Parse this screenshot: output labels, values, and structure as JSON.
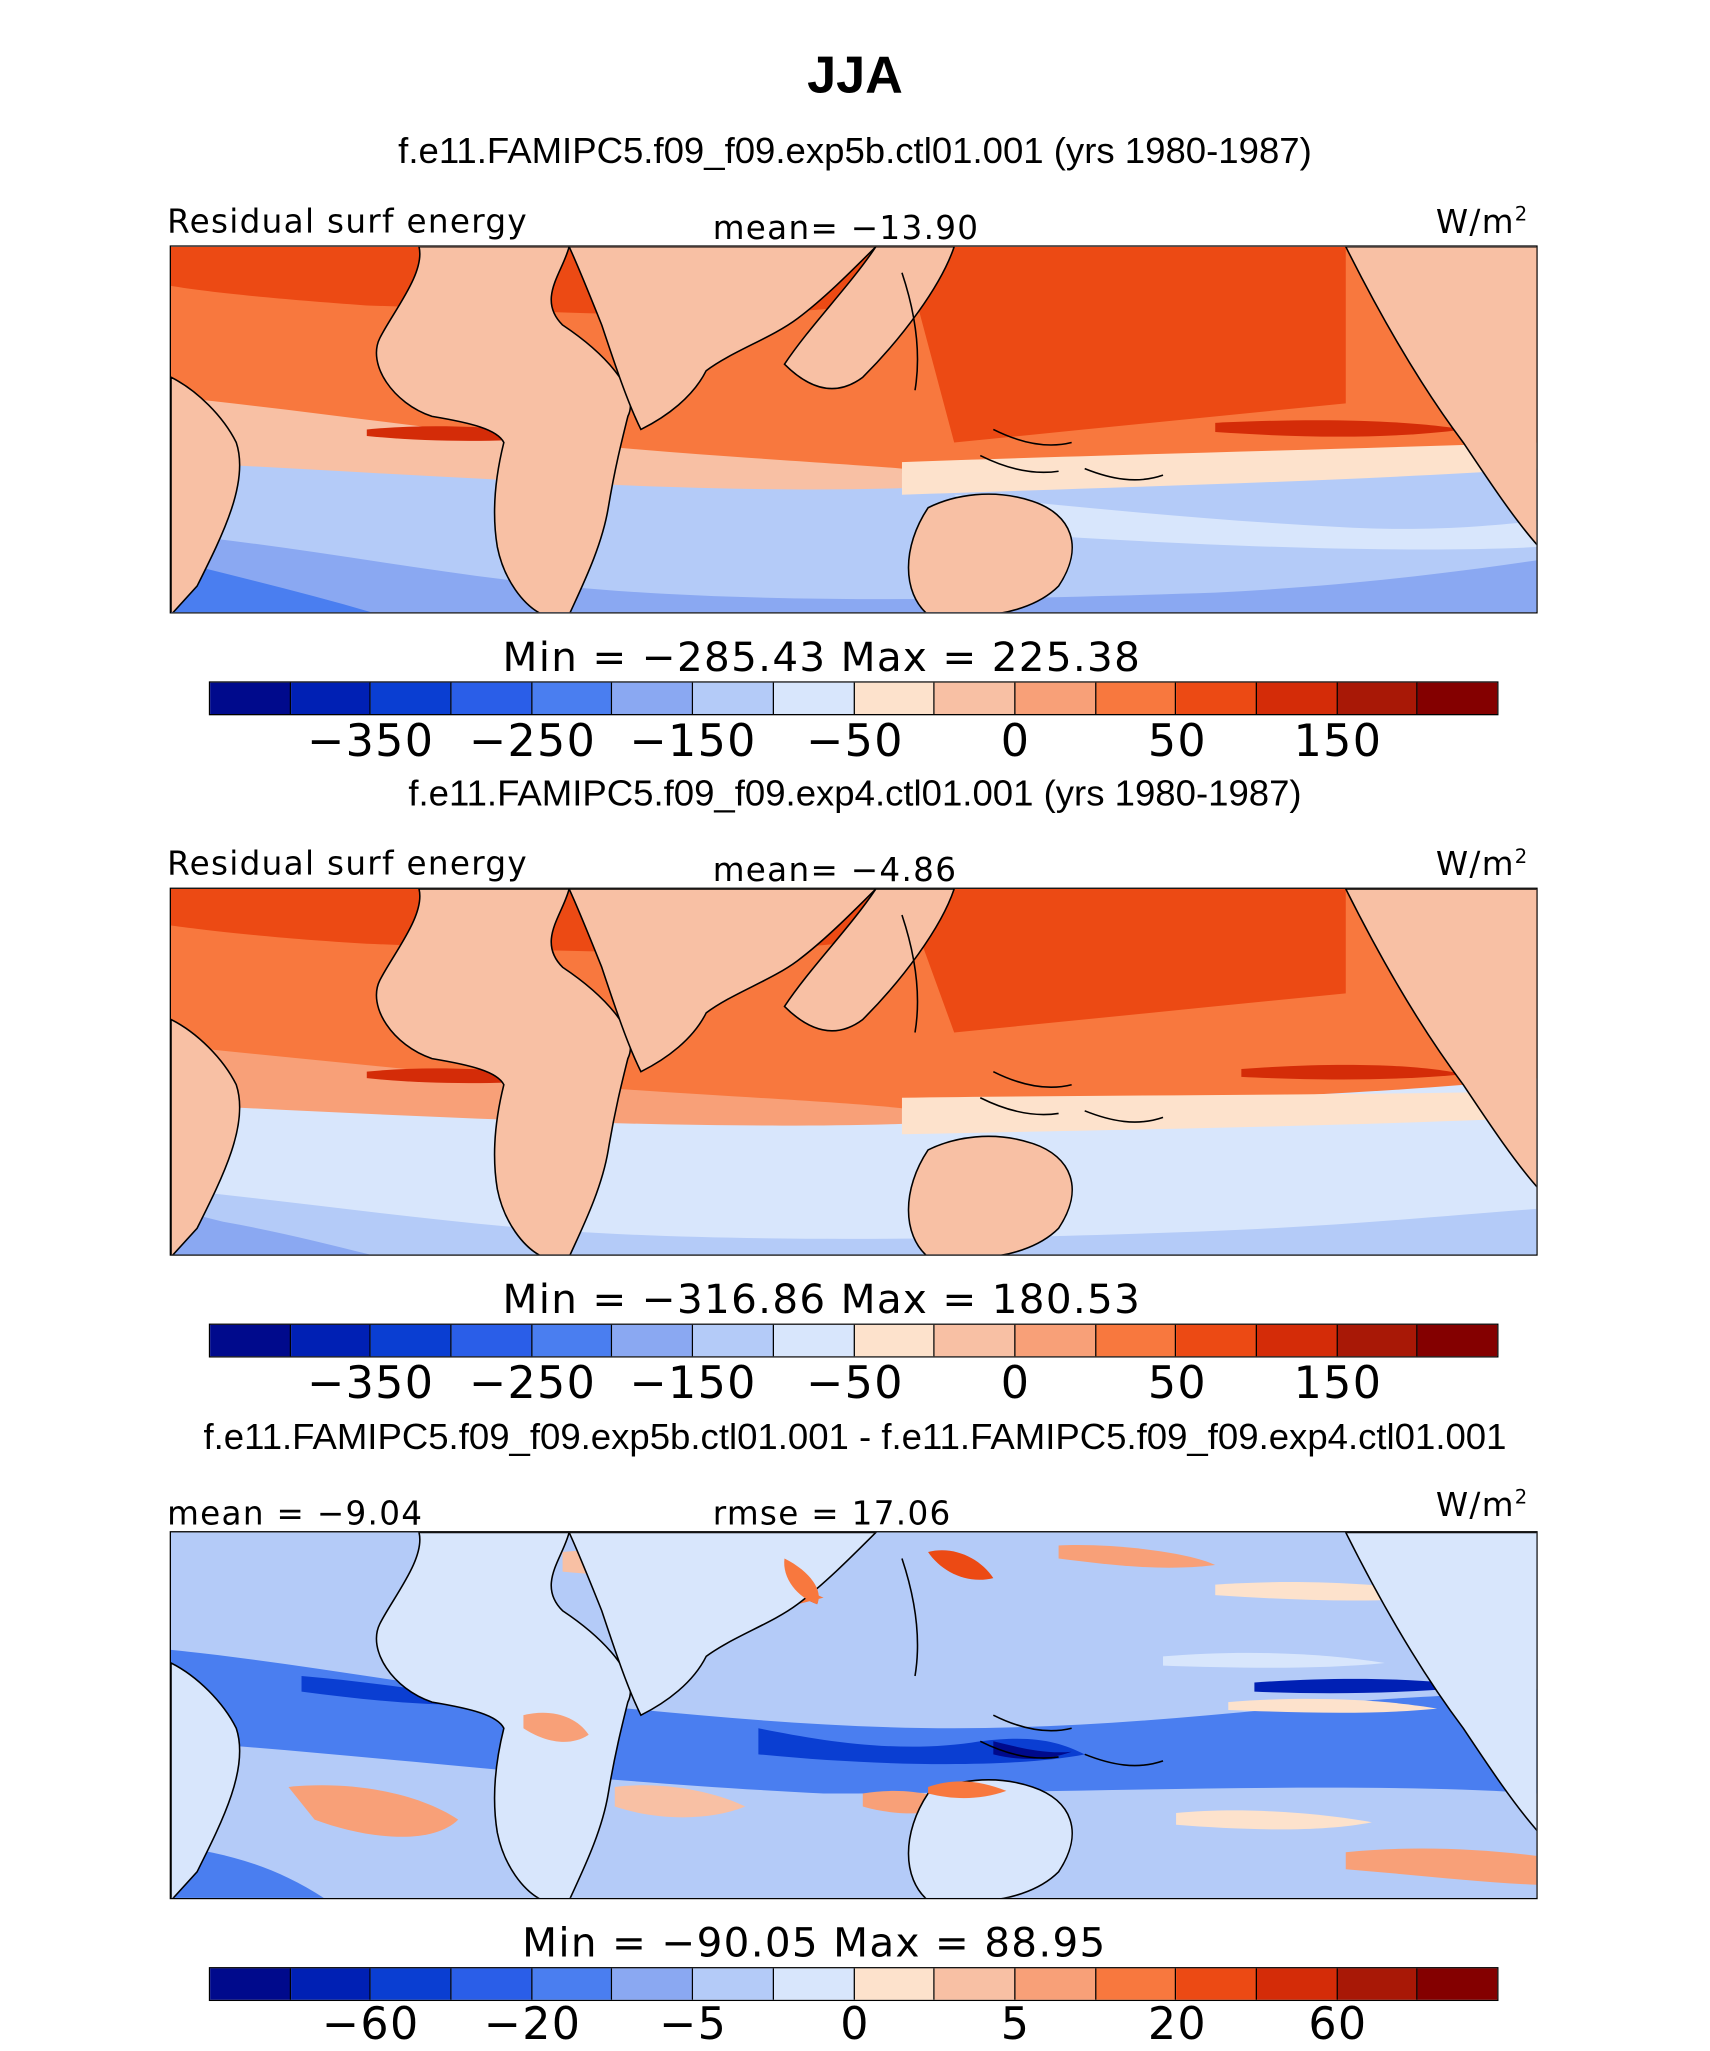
{
  "title": "JJA",
  "colors": [
    "#000a8c",
    "#0020b4",
    "#0a3ed2",
    "#2a5ee8",
    "#4a7ef0",
    "#8aa8f2",
    "#b4cbf8",
    "#d8e6fc",
    "#fde2cc",
    "#f8c0a4",
    "#f8a078",
    "#f8783e",
    "#ec4a14",
    "#d42c08",
    "#a81806",
    "#840000"
  ],
  "panels": [
    {
      "case": "f.e11.FAMIPC5.f09_f09.exp5b.ctl01.001 (yrs 1980-1987)",
      "left_label": "Residual surf energy",
      "center_label": "mean=  −13.90",
      "units": "W/m",
      "units_sup": "2",
      "minmax": "Min  =  −285.43  Max  =   225.38",
      "ticks": [
        "−350",
        "−250",
        "−150",
        "−50",
        "0",
        "50",
        "150"
      ]
    },
    {
      "case": "f.e11.FAMIPC5.f09_f09.exp4.ctl01.001 (yrs 1980-1987)",
      "left_label": "Residual surf energy",
      "center_label": "mean=   −4.86",
      "units": "W/m",
      "units_sup": "2",
      "minmax": "Min  =  −316.86  Max  =   180.53",
      "ticks": [
        "−350",
        "−250",
        "−150",
        "−50",
        "0",
        "50",
        "150"
      ]
    },
    {
      "case": "f.e11.FAMIPC5.f09_f09.exp5b.ctl01.001 - f.e11.FAMIPC5.f09_f09.exp4.ctl01.001",
      "left_label": "mean  =   −9.04",
      "center_label": "rmse  =   17.06",
      "units": "W/m",
      "units_sup": "2",
      "minmax": "Min  =  −90.05  Max  =    88.95",
      "ticks": [
        "−60",
        "−20",
        "−5",
        "0",
        "5",
        "20",
        "60"
      ]
    }
  ]
}
